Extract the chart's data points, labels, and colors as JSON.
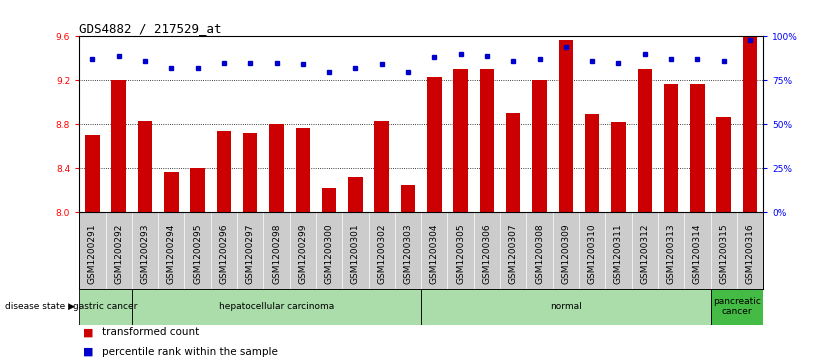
{
  "title": "GDS4882 / 217529_at",
  "samples": [
    "GSM1200291",
    "GSM1200292",
    "GSM1200293",
    "GSM1200294",
    "GSM1200295",
    "GSM1200296",
    "GSM1200297",
    "GSM1200298",
    "GSM1200299",
    "GSM1200300",
    "GSM1200301",
    "GSM1200302",
    "GSM1200303",
    "GSM1200304",
    "GSM1200305",
    "GSM1200306",
    "GSM1200307",
    "GSM1200308",
    "GSM1200309",
    "GSM1200310",
    "GSM1200311",
    "GSM1200312",
    "GSM1200313",
    "GSM1200314",
    "GSM1200315",
    "GSM1200316"
  ],
  "bar_values": [
    8.7,
    9.2,
    8.83,
    8.37,
    8.4,
    8.74,
    8.72,
    8.8,
    8.77,
    8.22,
    8.32,
    8.83,
    8.25,
    9.23,
    9.3,
    9.3,
    8.9,
    9.2,
    9.57,
    8.89,
    8.82,
    9.3,
    9.17,
    9.17,
    8.87,
    9.6
  ],
  "percentile_values": [
    87,
    89,
    86,
    82,
    82,
    85,
    85,
    85,
    84,
    80,
    82,
    84,
    80,
    88,
    90,
    89,
    86,
    87,
    94,
    86,
    85,
    90,
    87,
    87,
    86,
    98
  ],
  "ymin": 8.0,
  "ymax": 9.6,
  "yticks": [
    8.0,
    8.4,
    8.8,
    9.2,
    9.6
  ],
  "right_yticks": [
    0,
    25,
    50,
    75,
    100
  ],
  "right_ytick_labels": [
    "0%",
    "25%",
    "50%",
    "75%",
    "100%"
  ],
  "bar_color": "#cc0000",
  "percentile_color": "#0000cc",
  "bg_color": "#ffffff",
  "disease_states": [
    {
      "label": "gastric cancer",
      "start": 0,
      "end": 2,
      "color": "#aaddaa"
    },
    {
      "label": "hepatocellular carcinoma",
      "start": 2,
      "end": 13,
      "color": "#aaddaa"
    },
    {
      "label": "normal",
      "start": 13,
      "end": 24,
      "color": "#aaddaa"
    },
    {
      "label": "pancreatic\ncancer",
      "start": 24,
      "end": 26,
      "color": "#44bb44"
    }
  ],
  "xtick_bg_color": "#cccccc",
  "title_fontsize": 9,
  "tick_fontsize": 6.5,
  "label_fontsize": 7.5,
  "legend_fontsize": 7.5
}
